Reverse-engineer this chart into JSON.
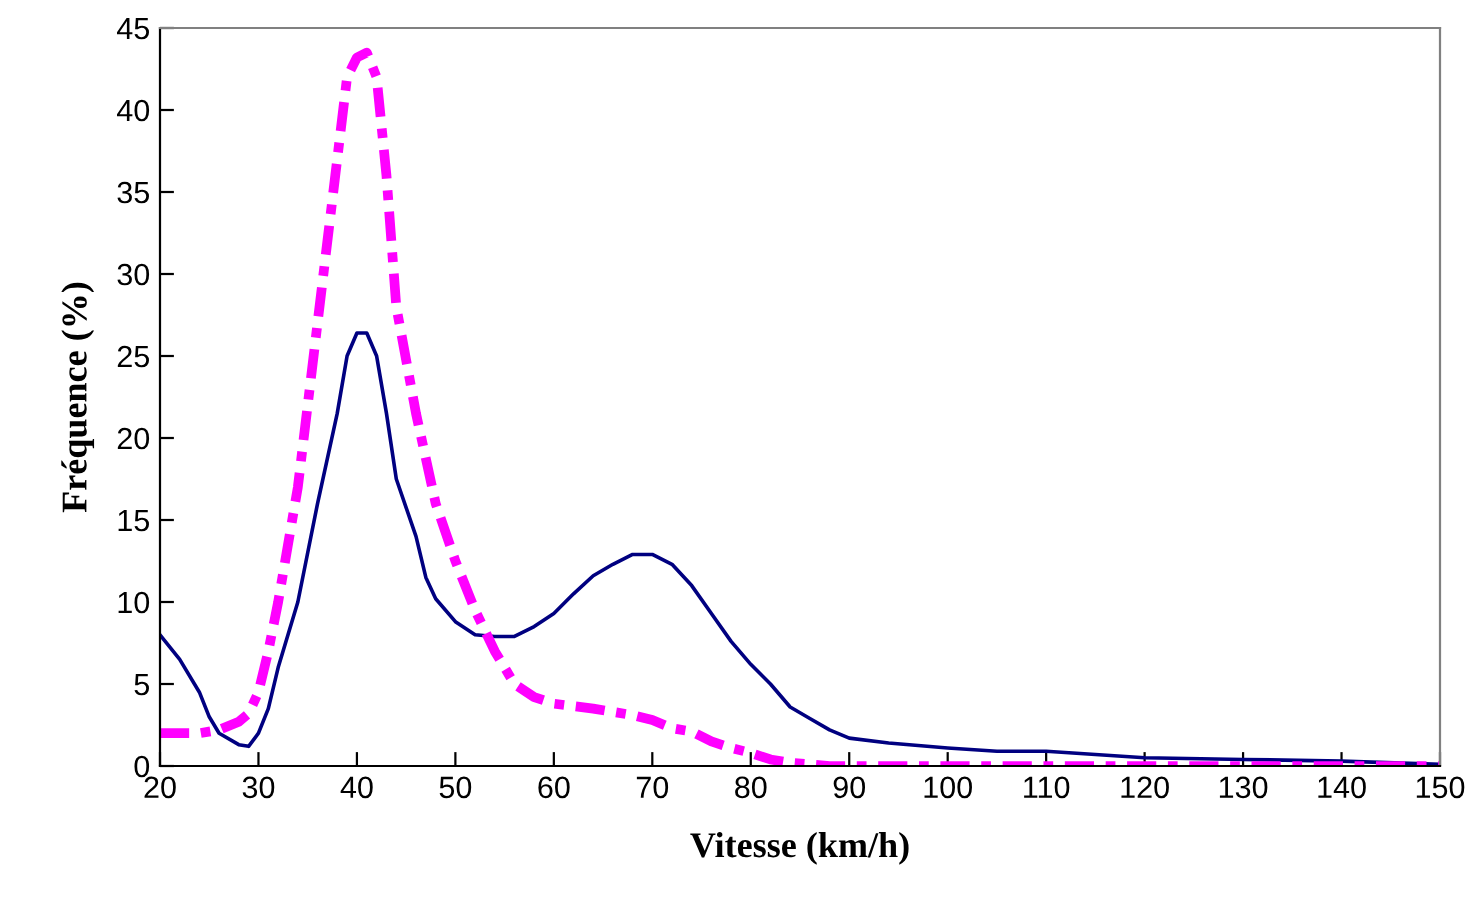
{
  "chart_data": {
    "type": "line",
    "xlabel": "Vitesse (km/h)",
    "ylabel": "Fréquence (%)",
    "xlim": [
      20,
      150
    ],
    "xticks": [
      20,
      30,
      40,
      50,
      60,
      70,
      80,
      90,
      100,
      110,
      120,
      130,
      140,
      150
    ],
    "ylim": [
      0,
      45
    ],
    "yticks": [
      0,
      5,
      10,
      15,
      20,
      25,
      30,
      35,
      40,
      45
    ],
    "grid": false,
    "marker": "none",
    "series": [
      {
        "color": "#000080",
        "line_style": "solid",
        "x": [
          20,
          22,
          24,
          25,
          26,
          28,
          29,
          30,
          31,
          32,
          34,
          36,
          38,
          39,
          40,
          41,
          42,
          43,
          44,
          46,
          47,
          48,
          50,
          52,
          54,
          56,
          58,
          60,
          62,
          64,
          66,
          68,
          70,
          72,
          74,
          76,
          78,
          80,
          82,
          84,
          86,
          88,
          90,
          94,
          100,
          105,
          110,
          120,
          130,
          140,
          150
        ],
        "values": [
          8,
          6.5,
          4.5,
          3,
          2,
          1.3,
          1.2,
          2,
          3.5,
          6,
          10,
          16,
          21.5,
          25,
          26.4,
          26.4,
          25,
          21.5,
          17.5,
          14,
          11.5,
          10.2,
          8.8,
          8,
          7.9,
          7.9,
          8.5,
          9.3,
          10.5,
          11.6,
          12.3,
          12.9,
          12.9,
          12.3,
          11,
          9.3,
          7.6,
          6.2,
          5,
          3.6,
          2.9,
          2.2,
          1.7,
          1.4,
          1.1,
          0.9,
          0.9,
          0.5,
          0.4,
          0.3,
          0.1
        ]
      },
      {
        "color": "#ff00ff",
        "line_style": "dashed",
        "x": [
          20,
          24,
          26,
          28,
          29,
          30,
          31,
          32,
          34,
          36,
          37,
          38,
          39,
          40,
          41,
          42,
          43,
          44,
          46,
          48,
          50,
          52,
          54,
          56,
          58,
          60,
          64,
          68,
          70,
          72,
          74,
          76,
          78,
          80,
          82,
          84,
          88,
          90,
          150
        ],
        "values": [
          2,
          2,
          2.2,
          2.7,
          3.2,
          4.5,
          7,
          10,
          17,
          27,
          32,
          37,
          42,
          43.2,
          43.5,
          42,
          36,
          28,
          21.5,
          16,
          12.5,
          9.5,
          7,
          5,
          4.2,
          3.8,
          3.5,
          3.1,
          2.8,
          2.3,
          2.1,
          1.5,
          1.1,
          0.8,
          0.4,
          0.2,
          0,
          0,
          0
        ]
      }
    ]
  }
}
